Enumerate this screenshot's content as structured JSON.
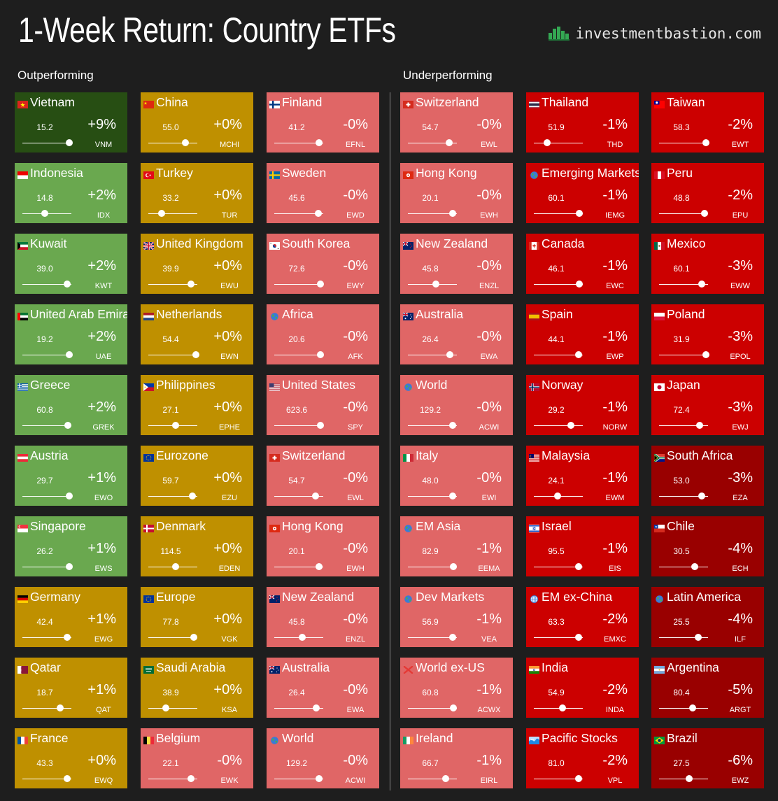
{
  "header": {
    "title": "1-Week Return: Country ETFs",
    "brand": "investmentbastion.com",
    "brand_icon": "green-bar-chart-icon"
  },
  "sections": {
    "outperforming": "Outperforming",
    "underperforming": "Underperforming"
  },
  "colors": {
    "strong_green": "#274e13",
    "green": "#6aa84f",
    "neutral": "#bf9000",
    "light_red": "#e06666",
    "red": "#cc0000",
    "dark_red": "#990000",
    "background": "#1e1e1e"
  },
  "chart_data": {
    "type": "table",
    "columns": [
      [
        {
          "name": "Vietnam",
          "flag": "vietnam",
          "price": "15.2",
          "ret": "+9%",
          "ticker": "VNM",
          "range_pos": 0.95,
          "color": "strong_green"
        },
        {
          "name": "Indonesia",
          "flag": "indonesia",
          "price": "14.8",
          "ret": "+2%",
          "ticker": "IDX",
          "range_pos": 0.45,
          "color": "green"
        },
        {
          "name": "Kuwait",
          "flag": "kuwait",
          "price": "39.0",
          "ret": "+2%",
          "ticker": "KWT",
          "range_pos": 0.92,
          "color": "green"
        },
        {
          "name": "United Arab Emirates",
          "flag": "uae",
          "price": "19.2",
          "ret": "+2%",
          "ticker": "UAE",
          "range_pos": 0.95,
          "color": "green"
        },
        {
          "name": "Greece",
          "flag": "greece",
          "price": "60.8",
          "ret": "+2%",
          "ticker": "GREK",
          "range_pos": 0.93,
          "color": "green"
        },
        {
          "name": "Austria",
          "flag": "austria",
          "price": "29.7",
          "ret": "+1%",
          "ticker": "EWO",
          "range_pos": 0.95,
          "color": "green"
        },
        {
          "name": "Singapore",
          "flag": "singapore",
          "price": "26.2",
          "ret": "+1%",
          "ticker": "EWS",
          "range_pos": 0.95,
          "color": "green"
        },
        {
          "name": "Germany",
          "flag": "germany",
          "price": "42.4",
          "ret": "+1%",
          "ticker": "EWG",
          "range_pos": 0.91,
          "color": "neutral"
        },
        {
          "name": "Qatar",
          "flag": "qatar",
          "price": "18.7",
          "ret": "+1%",
          "ticker": "QAT",
          "range_pos": 0.77,
          "color": "neutral"
        },
        {
          "name": "France",
          "flag": "france",
          "price": "43.3",
          "ret": "+0%",
          "ticker": "EWQ",
          "range_pos": 0.91,
          "color": "neutral"
        }
      ],
      [
        {
          "name": "China",
          "flag": "china",
          "price": "55.0",
          "ret": "+0%",
          "ticker": "MCHI",
          "range_pos": 0.75,
          "color": "neutral"
        },
        {
          "name": "Turkey",
          "flag": "turkey",
          "price": "33.2",
          "ret": "+0%",
          "ticker": "TUR",
          "range_pos": 0.27,
          "color": "neutral"
        },
        {
          "name": "United Kingdom",
          "flag": "uk",
          "price": "39.9",
          "ret": "+0%",
          "ticker": "EWU",
          "range_pos": 0.87,
          "color": "neutral"
        },
        {
          "name": "Netherlands",
          "flag": "netherlands",
          "price": "54.4",
          "ret": "+0%",
          "ticker": "EWN",
          "range_pos": 0.97,
          "color": "neutral"
        },
        {
          "name": "Philippines",
          "flag": "philippines",
          "price": "27.1",
          "ret": "+0%",
          "ticker": "EPHE",
          "range_pos": 0.56,
          "color": "neutral"
        },
        {
          "name": "Eurozone",
          "flag": "eu",
          "price": "59.7",
          "ret": "+0%",
          "ticker": "EZU",
          "range_pos": 0.9,
          "color": "neutral"
        },
        {
          "name": "Denmark",
          "flag": "denmark",
          "price": "114.5",
          "ret": "+0%",
          "ticker": "EDEN",
          "range_pos": 0.56,
          "color": "neutral"
        },
        {
          "name": "Europe",
          "flag": "eu",
          "price": "77.8",
          "ret": "+0%",
          "ticker": "VGK",
          "range_pos": 0.93,
          "color": "neutral"
        },
        {
          "name": "Saudi Arabia",
          "flag": "saudi",
          "price": "38.9",
          "ret": "+0%",
          "ticker": "KSA",
          "range_pos": 0.36,
          "color": "neutral"
        },
        {
          "name": "Belgium",
          "flag": "belgium",
          "price": "22.1",
          "ret": "-0%",
          "ticker": "EWK",
          "range_pos": 0.87,
          "color": "light_red"
        }
      ],
      [
        {
          "name": "Finland",
          "flag": "finland",
          "price": "41.2",
          "ret": "-0%",
          "ticker": "EFNL",
          "range_pos": 0.92,
          "color": "light_red"
        },
        {
          "name": "Sweden",
          "flag": "sweden",
          "price": "45.6",
          "ret": "-0%",
          "ticker": "EWD",
          "range_pos": 0.9,
          "color": "light_red"
        },
        {
          "name": "South Korea",
          "flag": "korea",
          "price": "72.6",
          "ret": "-0%",
          "ticker": "EWY",
          "range_pos": 0.94,
          "color": "light_red"
        },
        {
          "name": "Africa",
          "flag": "globe",
          "price": "20.6",
          "ret": "-0%",
          "ticker": "AFK",
          "range_pos": 0.94,
          "color": "light_red"
        },
        {
          "name": "United States",
          "flag": "usa",
          "price": "623.6",
          "ret": "-0%",
          "ticker": "SPY",
          "range_pos": 0.94,
          "color": "light_red"
        },
        {
          "name": "Switzerland",
          "flag": "switzerland",
          "price": "54.7",
          "ret": "-0%",
          "ticker": "EWL",
          "range_pos": 0.84,
          "color": "light_red"
        },
        {
          "name": "Hong Kong",
          "flag": "hongkong",
          "price": "20.1",
          "ret": "-0%",
          "ticker": "EWH",
          "range_pos": 0.92,
          "color": "light_red"
        },
        {
          "name": "New Zealand",
          "flag": "newzealand",
          "price": "45.8",
          "ret": "-0%",
          "ticker": "ENZL",
          "range_pos": 0.57,
          "color": "light_red"
        },
        {
          "name": "Australia",
          "flag": "australia",
          "price": "26.4",
          "ret": "-0%",
          "ticker": "EWA",
          "range_pos": 0.86,
          "color": "light_red"
        },
        {
          "name": "World",
          "flag": "globe",
          "price": "129.2",
          "ret": "-0%",
          "ticker": "ACWI",
          "range_pos": 0.92,
          "color": "light_red"
        }
      ],
      [
        {
          "name": "Switzerland",
          "flag": "switzerland",
          "price": "54.7",
          "ret": "-0%",
          "ticker": "EWL",
          "range_pos": 0.84,
          "color": "light_red"
        },
        {
          "name": "Hong Kong",
          "flag": "hongkong",
          "price": "20.1",
          "ret": "-0%",
          "ticker": "EWH",
          "range_pos": 0.92,
          "color": "light_red"
        },
        {
          "name": "New Zealand",
          "flag": "newzealand",
          "price": "45.8",
          "ret": "-0%",
          "ticker": "ENZL",
          "range_pos": 0.57,
          "color": "light_red"
        },
        {
          "name": "Australia",
          "flag": "australia",
          "price": "26.4",
          "ret": "-0%",
          "ticker": "EWA",
          "range_pos": 0.86,
          "color": "light_red"
        },
        {
          "name": "World",
          "flag": "globe",
          "price": "129.2",
          "ret": "-0%",
          "ticker": "ACWI",
          "range_pos": 0.92,
          "color": "light_red"
        },
        {
          "name": "Italy",
          "flag": "italy",
          "price": "48.0",
          "ret": "-0%",
          "ticker": "EWI",
          "range_pos": 0.92,
          "color": "light_red"
        },
        {
          "name": "EM Asia",
          "flag": "globe",
          "price": "82.9",
          "ret": "-1%",
          "ticker": "EEMA",
          "range_pos": 0.93,
          "color": "light_red"
        },
        {
          "name": "Dev Markets",
          "flag": "globe",
          "price": "56.9",
          "ret": "-1%",
          "ticker": "VEA",
          "range_pos": 0.92,
          "color": "light_red"
        },
        {
          "name": "World ex-US",
          "flag": "cross",
          "price": "60.8",
          "ret": "-1%",
          "ticker": "ACWX",
          "range_pos": 0.93,
          "color": "light_red"
        },
        {
          "name": "Ireland",
          "flag": "ireland",
          "price": "66.7",
          "ret": "-1%",
          "ticker": "EIRL",
          "range_pos": 0.77,
          "color": "light_red"
        }
      ],
      [
        {
          "name": "Thailand",
          "flag": "thailand",
          "price": "51.9",
          "ret": "-1%",
          "ticker": "THD",
          "range_pos": 0.27,
          "color": "red"
        },
        {
          "name": "Emerging Markets",
          "flag": "globe",
          "price": "60.1",
          "ret": "-1%",
          "ticker": "IEMG",
          "range_pos": 0.93,
          "color": "red"
        },
        {
          "name": "Canada",
          "flag": "canada",
          "price": "46.1",
          "ret": "-1%",
          "ticker": "EWC",
          "range_pos": 0.93,
          "color": "red"
        },
        {
          "name": "Spain",
          "flag": "spain",
          "price": "44.1",
          "ret": "-1%",
          "ticker": "EWP",
          "range_pos": 0.92,
          "color": "red"
        },
        {
          "name": "Norway",
          "flag": "norway",
          "price": "29.2",
          "ret": "-1%",
          "ticker": "NORW",
          "range_pos": 0.75,
          "color": "red"
        },
        {
          "name": "Malaysia",
          "flag": "malaysia",
          "price": "24.1",
          "ret": "-1%",
          "ticker": "EWM",
          "range_pos": 0.48,
          "color": "red"
        },
        {
          "name": "Israel",
          "flag": "israel",
          "price": "95.5",
          "ret": "-1%",
          "ticker": "EIS",
          "range_pos": 0.92,
          "color": "red"
        },
        {
          "name": "EM ex-China",
          "flag": "globe-white",
          "price": "63.3",
          "ret": "-2%",
          "ticker": "EMXC",
          "range_pos": 0.91,
          "color": "red"
        },
        {
          "name": "India",
          "flag": "india",
          "price": "54.9",
          "ret": "-2%",
          "ticker": "INDA",
          "range_pos": 0.59,
          "color": "red"
        },
        {
          "name": "Pacific Stocks",
          "flag": "wave",
          "price": "81.0",
          "ret": "-2%",
          "ticker": "VPL",
          "range_pos": 0.91,
          "color": "red"
        }
      ],
      [
        {
          "name": "Taiwan",
          "flag": "taiwan",
          "price": "58.3",
          "ret": "-2%",
          "ticker": "EWT",
          "range_pos": 0.95,
          "color": "red"
        },
        {
          "name": "Peru",
          "flag": "peru",
          "price": "48.8",
          "ret": "-2%",
          "ticker": "EPU",
          "range_pos": 0.93,
          "color": "red"
        },
        {
          "name": "Mexico",
          "flag": "mexico",
          "price": "60.1",
          "ret": "-3%",
          "ticker": "EWW",
          "range_pos": 0.87,
          "color": "red"
        },
        {
          "name": "Poland",
          "flag": "poland",
          "price": "31.9",
          "ret": "-3%",
          "ticker": "EPOL",
          "range_pos": 0.95,
          "color": "red"
        },
        {
          "name": "Japan",
          "flag": "japan",
          "price": "72.4",
          "ret": "-3%",
          "ticker": "EWJ",
          "range_pos": 0.83,
          "color": "red"
        },
        {
          "name": "South Africa",
          "flag": "southafrica",
          "price": "53.0",
          "ret": "-3%",
          "ticker": "EZA",
          "range_pos": 0.87,
          "color": "dark_red"
        },
        {
          "name": "Chile",
          "flag": "chile",
          "price": "30.5",
          "ret": "-4%",
          "ticker": "ECH",
          "range_pos": 0.73,
          "color": "dark_red"
        },
        {
          "name": "Latin America",
          "flag": "globe",
          "price": "25.5",
          "ret": "-4%",
          "ticker": "ILF",
          "range_pos": 0.8,
          "color": "dark_red"
        },
        {
          "name": "Argentina",
          "flag": "argentina",
          "price": "80.4",
          "ret": "-5%",
          "ticker": "ARGT",
          "range_pos": 0.68,
          "color": "dark_red"
        },
        {
          "name": "Brazil",
          "flag": "brazil",
          "price": "27.5",
          "ret": "-6%",
          "ticker": "EWZ",
          "range_pos": 0.61,
          "color": "dark_red"
        }
      ]
    ]
  }
}
